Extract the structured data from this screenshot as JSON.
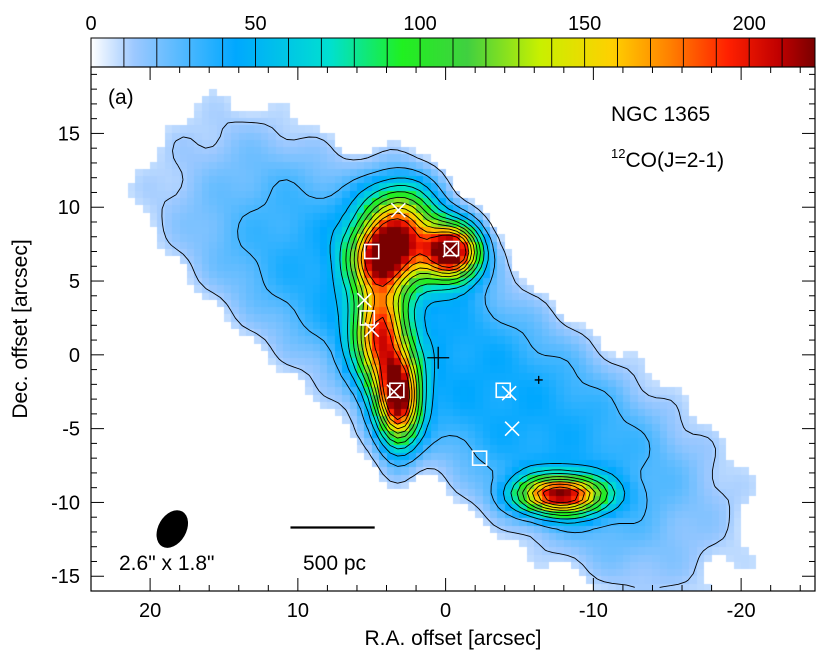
{
  "chart_data": {
    "type": "heatmap",
    "panel_label": "(a)",
    "object_name": "NGC 1365",
    "line_label": {
      "prefix": "12",
      "text": "CO(J=2-1)"
    },
    "xlabel": "R.A. offset [arcsec]",
    "ylabel": "Dec. offset [arcsec]",
    "xlim": [
      24,
      -25
    ],
    "ylim": [
      -16,
      19.5
    ],
    "x_ticks": [
      20,
      10,
      0,
      -10,
      -20
    ],
    "x_tick_labels": [
      "20",
      "10",
      "0",
      "-10",
      "-20"
    ],
    "y_ticks": [
      15,
      10,
      5,
      0,
      -5,
      -10,
      -15
    ],
    "y_tick_labels": [
      "15",
      "10",
      "5",
      "0",
      "-5",
      "-10",
      "-15"
    ],
    "colorbar": {
      "range": [
        0,
        220
      ],
      "ticks": [
        0,
        50,
        100,
        150,
        200
      ],
      "tick_labels": [
        "0",
        "50",
        "100",
        "150",
        "200"
      ],
      "placement": "top",
      "colors": [
        "#ffffff",
        "#9cc8ff",
        "#00a8ff",
        "#00e0d0",
        "#20f020",
        "#40d040",
        "#c8f000",
        "#ffd000",
        "#ff8000",
        "#ff2000",
        "#c00000",
        "#7a0000"
      ]
    },
    "beam_label": "2.6\" x 1.8\"",
    "scale_bar_label": "500 pc",
    "beam": {
      "x": 18.5,
      "y": -11.8,
      "major": 2.6,
      "minor": 1.8,
      "pa_deg": 30
    },
    "scale_bar": {
      "x_from": 10.5,
      "x_to": 4.8,
      "y": -11.7
    },
    "peaks": [
      {
        "x": -0.5,
        "y": 7.0,
        "value": 215,
        "sx": 1.3,
        "sy": 1.3
      },
      {
        "x": 3.2,
        "y": -3.0,
        "value": 200,
        "sx": 1.0,
        "sy": 2.2
      },
      {
        "x": -7.8,
        "y": -9.5,
        "value": 190,
        "sx": 2.0,
        "sy": 0.9
      },
      {
        "x": 3.0,
        "y": 8.5,
        "value": 160,
        "sx": 1.8,
        "sy": 2.2
      },
      {
        "x": 4.5,
        "y": 1.5,
        "value": 150,
        "sx": 1.2,
        "sy": 2.5
      },
      {
        "x": 4.5,
        "y": 6.5,
        "value": 120,
        "sx": 1.4,
        "sy": 1.5
      }
    ],
    "markers": {
      "crosses": [
        {
          "x": 3.2,
          "y": 9.8
        },
        {
          "x": -0.3,
          "y": 7.1
        },
        {
          "x": 5.5,
          "y": 3.7
        },
        {
          "x": 5.0,
          "y": 1.7
        },
        {
          "x": 3.5,
          "y": -2.5
        },
        {
          "x": -4.3,
          "y": -2.6
        },
        {
          "x": -4.5,
          "y": -5.0
        }
      ],
      "squares": [
        {
          "x": 5.0,
          "y": 7.0
        },
        {
          "x": -0.4,
          "y": 7.2
        },
        {
          "x": 5.3,
          "y": 2.5
        },
        {
          "x": 3.3,
          "y": -2.4
        },
        {
          "x": -3.9,
          "y": -2.4
        },
        {
          "x": -2.3,
          "y": -7.0
        }
      ],
      "plus": [
        {
          "x": 0.5,
          "y": -0.2
        },
        {
          "x": -6.3,
          "y": -1.7
        }
      ]
    }
  }
}
